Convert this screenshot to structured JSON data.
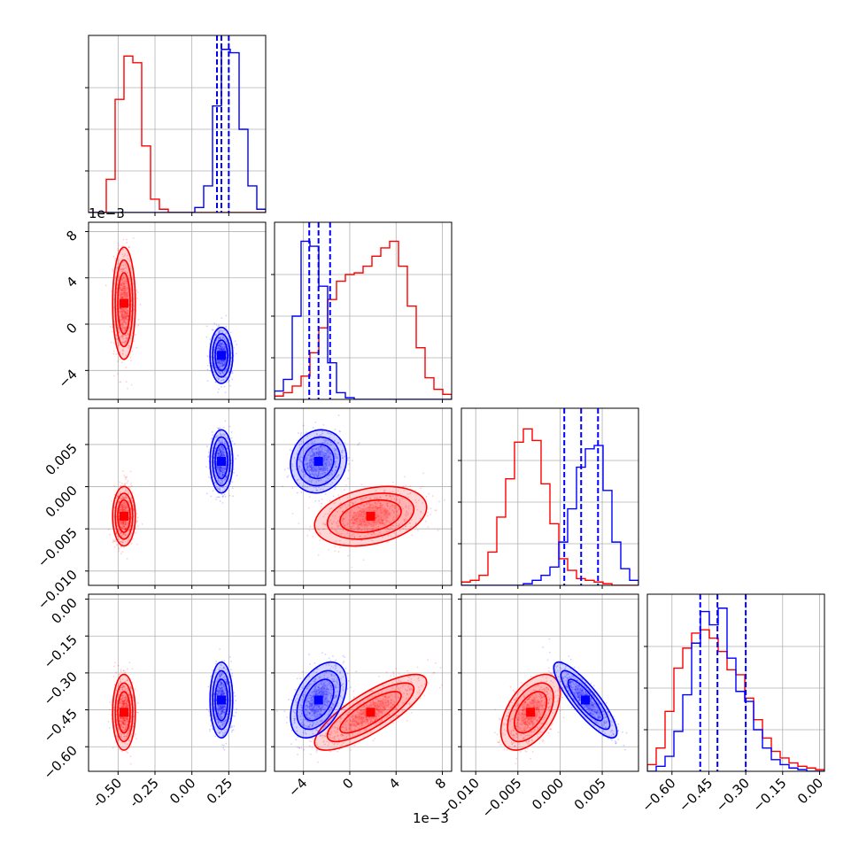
{
  "chart_data": {
    "type": "corner",
    "colors": {
      "red": "#ff0000",
      "blue": "#0000ff",
      "grid": "#b0b0b0"
    },
    "grid": true,
    "parameters": [
      {
        "range": [
          -0.7,
          0.5
        ],
        "ticks": [
          "-0.50",
          "-0.25",
          "0.00",
          "0.25"
        ],
        "tick_values": [
          -0.5,
          -0.25,
          0.0,
          0.25
        ]
      },
      {
        "range": [
          -0.0065,
          0.0088
        ],
        "offset_label": "1e−3",
        "ticks": [
          "−4",
          "0",
          "4",
          "8"
        ],
        "tick_values": [
          -0.004,
          0.0,
          0.004,
          0.008
        ]
      },
      {
        "range": [
          -0.0117,
          0.0093
        ],
        "ticks": [
          "−0.010",
          "−0.005",
          "0.000",
          "0.005"
        ],
        "tick_values": [
          -0.01,
          -0.005,
          0.0,
          0.005
        ]
      },
      {
        "range": [
          -0.7,
          0.02
        ],
        "ticks": [
          "−0.60",
          "−0.45",
          "−0.30",
          "−0.15",
          "0.00"
        ],
        "tick_values": [
          -0.6,
          -0.45,
          -0.3,
          -0.15,
          0.0
        ]
      }
    ],
    "series": [
      {
        "color": "red",
        "means": [
          -0.46,
          0.0018,
          -0.0035,
          -0.46
        ],
        "sds": [
          0.035,
          0.0022,
          0.0016,
          0.07
        ],
        "hist": [
          [
            0,
            0,
            0.2,
            0.68,
            0.94,
            0.9,
            0.4,
            0.08,
            0.02,
            0,
            0,
            0,
            0,
            0,
            0,
            0,
            0,
            0,
            0,
            0
          ],
          [
            0.02,
            0.04,
            0.08,
            0.14,
            0.28,
            0.43,
            0.6,
            0.71,
            0.75,
            0.76,
            0.8,
            0.86,
            0.91,
            0.95,
            0.8,
            0.56,
            0.31,
            0.13,
            0.06,
            0.03
          ],
          [
            0.02,
            0.03,
            0.06,
            0.2,
            0.41,
            0.64,
            0.86,
            0.94,
            0.87,
            0.61,
            0.37,
            0.16,
            0.09,
            0.04,
            0.03,
            0.02,
            0.01,
            0,
            0,
            0
          ],
          [
            0.04,
            0.14,
            0.36,
            0.62,
            0.74,
            0.83,
            0.85,
            0.8,
            0.72,
            0.61,
            0.58,
            0.44,
            0.31,
            0.2,
            0.12,
            0.08,
            0.05,
            0.03,
            0.02,
            0.01
          ]
        ]
      },
      {
        "color": "blue",
        "means": [
          0.2,
          -0.0027,
          0.003,
          -0.41
        ],
        "sds": [
          0.035,
          0.0011,
          0.0017,
          0.07
        ],
        "hist": [
          [
            0,
            0,
            0,
            0,
            0,
            0,
            0,
            0,
            0,
            0,
            0,
            0,
            0.03,
            0.16,
            0.64,
            0.98,
            0.96,
            0.5,
            0.16,
            0.02
          ],
          [
            0.05,
            0.12,
            0.5,
            0.95,
            0.92,
            0.68,
            0.22,
            0.04,
            0.01,
            0,
            0,
            0,
            0,
            0,
            0,
            0,
            0,
            0,
            0,
            0
          ],
          [
            0,
            0,
            0,
            0,
            0,
            0,
            0,
            0.01,
            0.03,
            0.06,
            0.11,
            0.26,
            0.46,
            0.71,
            0.82,
            0.84,
            0.57,
            0.26,
            0.1,
            0.03
          ],
          [
            0,
            0.03,
            0.09,
            0.24,
            0.46,
            0.77,
            0.96,
            0.88,
            0.98,
            0.68,
            0.48,
            0.42,
            0.25,
            0.14,
            0.07,
            0.04,
            0.02,
            0.01,
            0,
            0
          ]
        ],
        "quantiles": [
          [
            0.17,
            0.2,
            0.25
          ],
          [
            -0.0035,
            -0.0027,
            -0.0017
          ],
          [
            0.0005,
            0.0025,
            0.0045
          ],
          [
            -0.485,
            -0.415,
            -0.3
          ]
        ]
      }
    ],
    "pair_correlations": [
      {
        "i": 1,
        "j": 0,
        "red": 0.0,
        "blue": 0.0
      },
      {
        "i": 2,
        "j": 0,
        "red": 0.0,
        "blue": 0.0
      },
      {
        "i": 2,
        "j": 1,
        "red": 0.3,
        "blue": 0.1
      },
      {
        "i": 3,
        "j": 0,
        "red": 0.0,
        "blue": 0.0
      },
      {
        "i": 3,
        "j": 1,
        "red": 0.8,
        "blue": 0.45
      },
      {
        "i": 3,
        "j": 2,
        "red": 0.5,
        "blue": -0.85
      }
    ]
  }
}
